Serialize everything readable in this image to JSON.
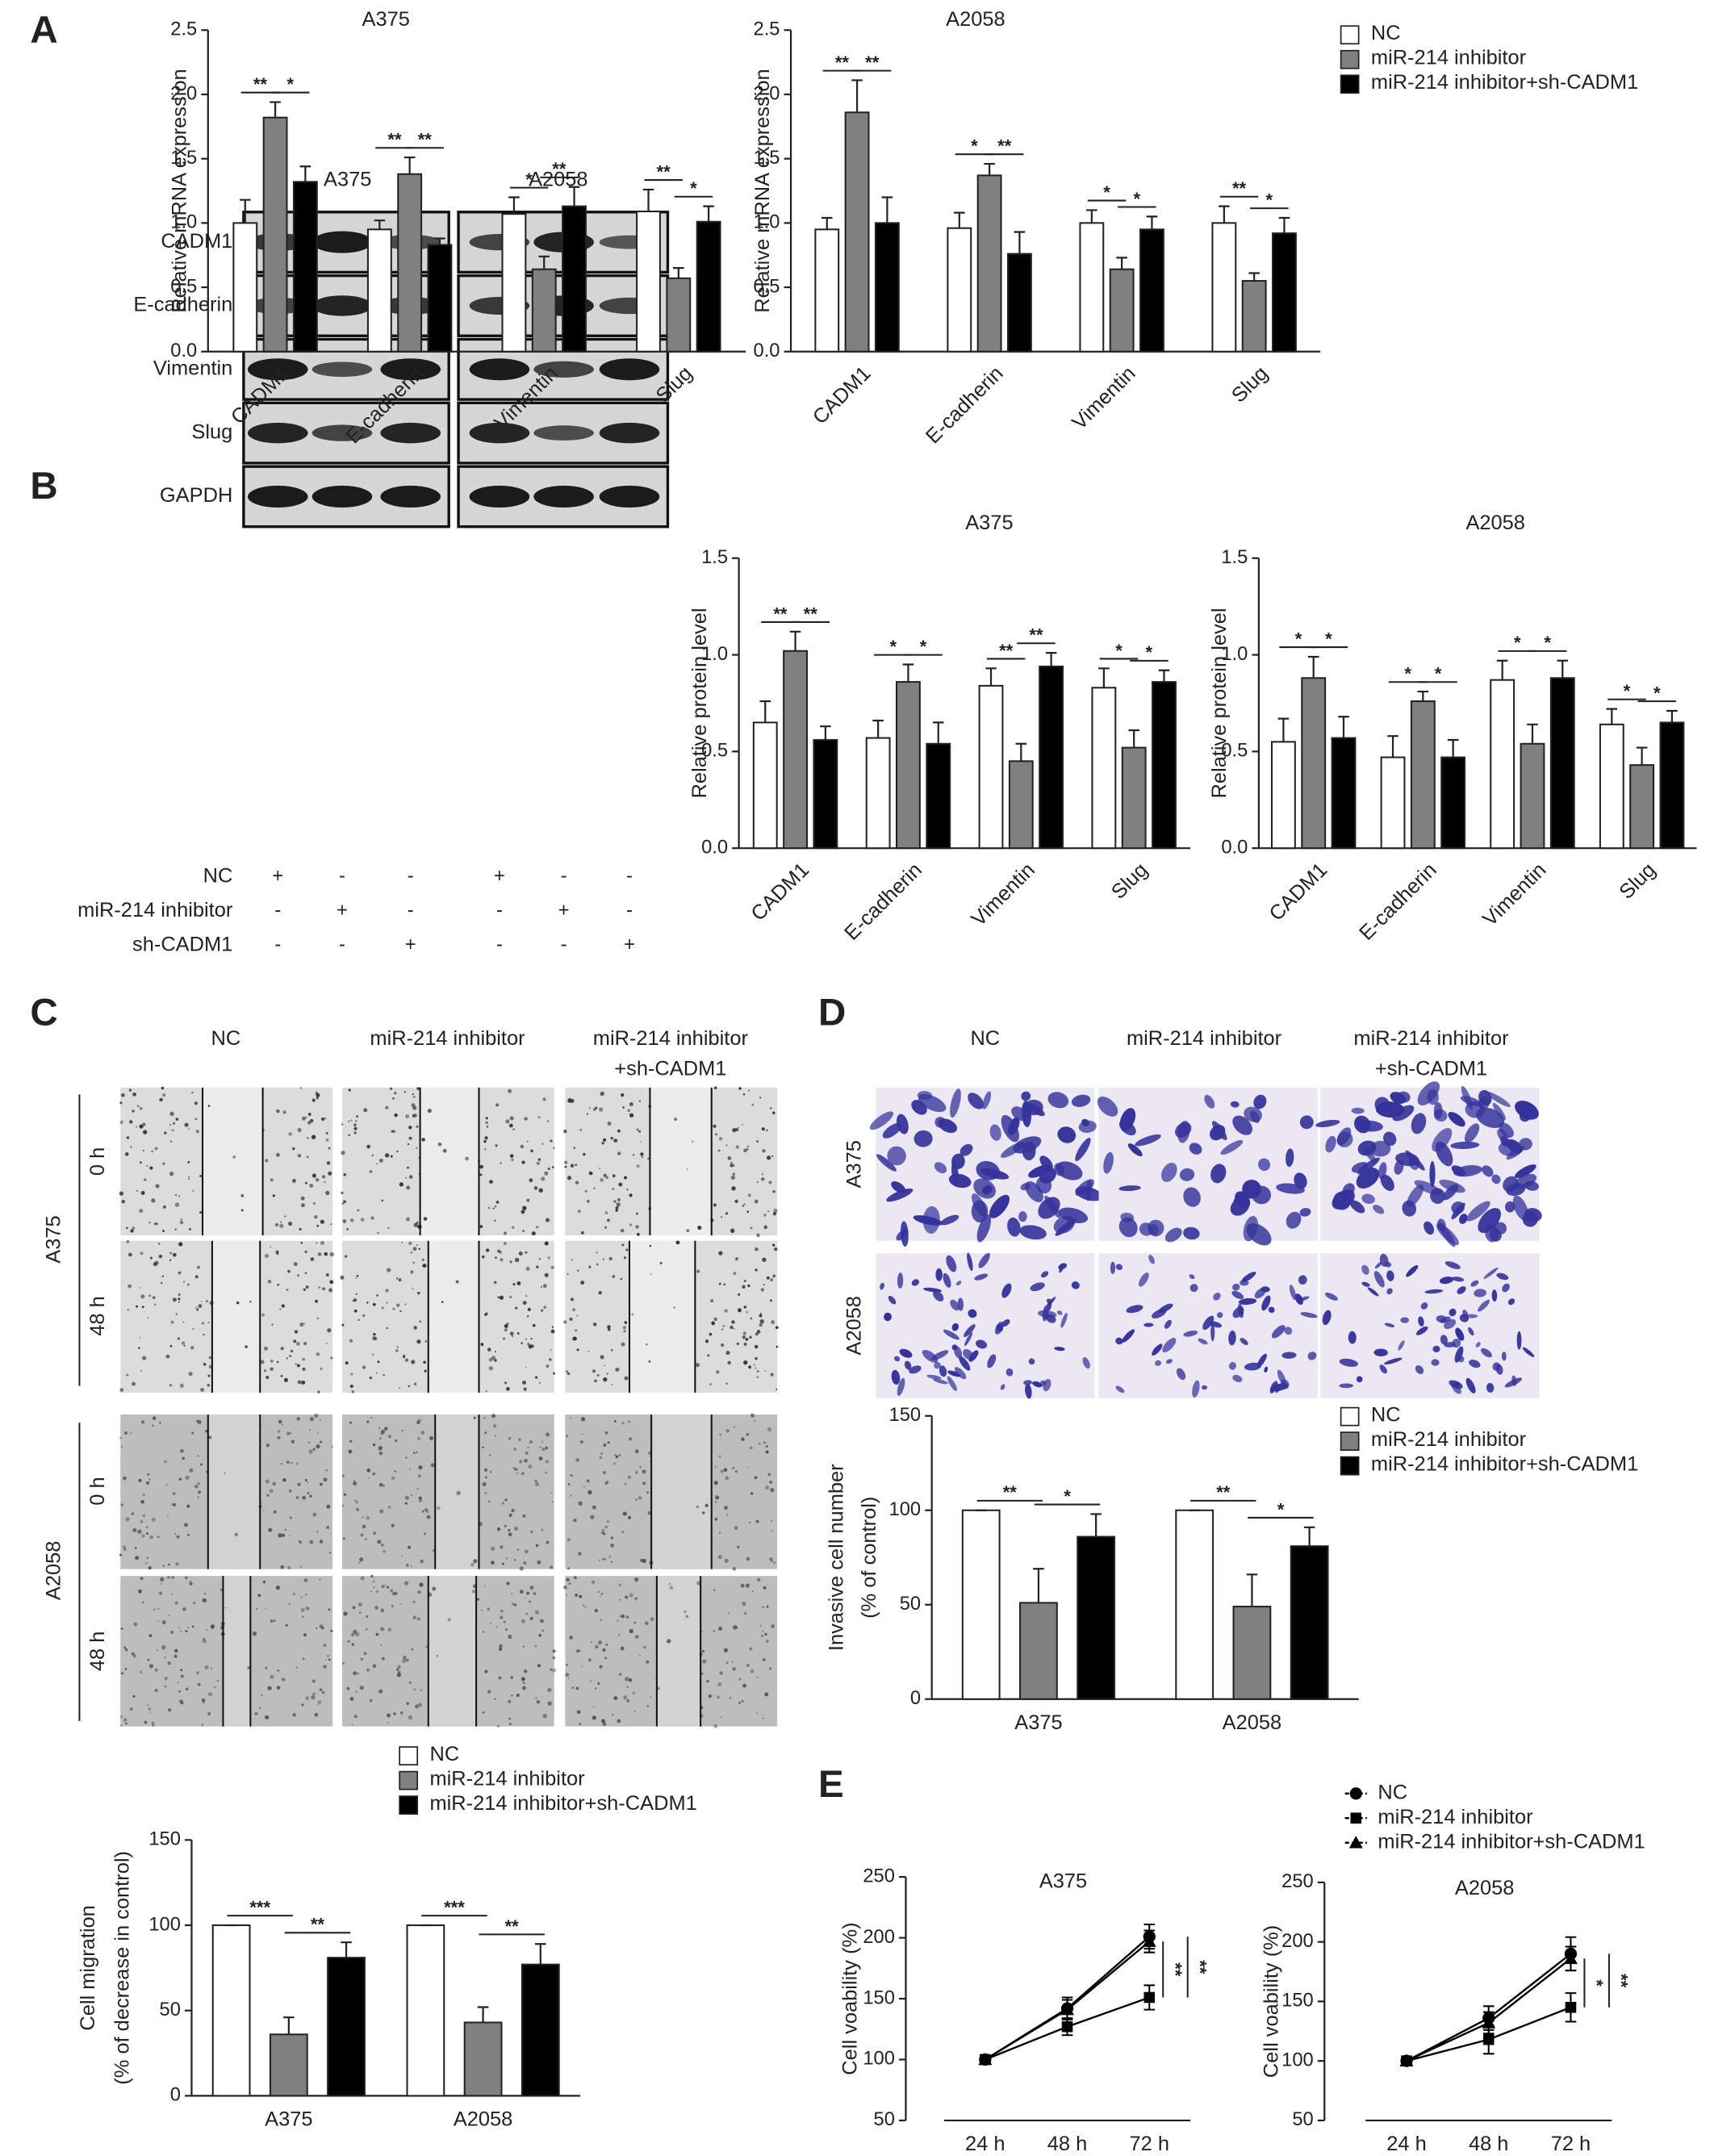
{
  "panel_labels": [
    "A",
    "B",
    "C",
    "D",
    "E"
  ],
  "blot": {
    "cell_lines": [
      "A375",
      "A2058"
    ],
    "proteins": [
      "CADM1",
      "E-cadherin",
      "Vimentin",
      "Slug",
      "GAPDH"
    ],
    "conditions": [
      {
        "name": "NC",
        "signs": [
          "+",
          "-",
          "-",
          "+",
          "-",
          "-"
        ]
      },
      {
        "name": "miR-214 inhibitor",
        "signs": [
          "-",
          "+",
          "-",
          "-",
          "+",
          "-"
        ]
      },
      {
        "name": "sh-CADM1",
        "signs": [
          "-",
          "-",
          "+",
          "-",
          "-",
          "+"
        ]
      }
    ]
  },
  "wound_assay": {
    "groups": [
      [
        "NC"
      ],
      [
        "miR-214 inhibitor"
      ],
      [
        "miR-214 inhibitor",
        "+sh-CADM1"
      ]
    ],
    "cell_lines": [
      "A375",
      "A2058"
    ],
    "times": [
      "0 h",
      "48 h"
    ]
  },
  "invasion_assay": {
    "groups": [
      [
        "NC"
      ],
      [
        "miR-214 inhibitor"
      ],
      [
        "miR-214 inhibitor",
        "+sh-CADM1"
      ]
    ],
    "cell_lines": [
      "A375",
      "A2058"
    ]
  },
  "chart_data": [
    {
      "type": "bar",
      "title": "A375",
      "y_label": "Relative mRNA expression",
      "categories": [
        "CADM1",
        "E-cadherin",
        "Vimentin",
        "Slug"
      ],
      "series": [
        {
          "name": "NC",
          "color": "#ffffff",
          "values": [
            1.0,
            0.95,
            1.07,
            1.09
          ],
          "errors": [
            0.18,
            0.07,
            0.13,
            0.17
          ]
        },
        {
          "name": "miR-214 inhibitor",
          "color": "#808080",
          "values": [
            1.82,
            1.38,
            0.64,
            0.57
          ],
          "errors": [
            0.12,
            0.13,
            0.1,
            0.08
          ]
        },
        {
          "name": "miR-214 inhibitor+sh-CADM1",
          "color": "#000000",
          "values": [
            1.32,
            0.83,
            1.13,
            1.01
          ],
          "errors": [
            0.12,
            0.05,
            0.15,
            0.12
          ]
        }
      ],
      "significance": [
        [
          "**",
          "*"
        ],
        [
          "**",
          "**"
        ],
        [
          "*",
          "**"
        ],
        [
          "**",
          "*"
        ]
      ],
      "ylim": [
        0,
        2.5
      ],
      "yticks": [
        {
          "value": 0,
          "label": "0.0"
        },
        0.5,
        {
          "value": 1,
          "label": "1.0"
        },
        1.5,
        {
          "value": 2,
          "label": "2.0"
        },
        2.5
      ]
    },
    {
      "type": "bar",
      "title": "A2058",
      "y_label": "Relative mRNA expression",
      "categories": [
        "CADM1",
        "E-cadherin",
        "Vimentin",
        "Slug"
      ],
      "series": [
        {
          "name": "NC",
          "color": "#ffffff",
          "values": [
            0.95,
            0.96,
            1.0,
            1.0
          ],
          "errors": [
            0.09,
            0.12,
            0.1,
            0.13
          ]
        },
        {
          "name": "miR-214 inhibitor",
          "color": "#808080",
          "values": [
            1.86,
            1.37,
            0.64,
            0.55
          ],
          "errors": [
            0.25,
            0.09,
            0.09,
            0.06
          ]
        },
        {
          "name": "miR-214 inhibitor+sh-CADM1",
          "color": "#000000",
          "values": [
            1.0,
            0.76,
            0.95,
            0.92
          ],
          "errors": [
            0.2,
            0.17,
            0.1,
            0.12
          ]
        }
      ],
      "significance": [
        [
          "**",
          "**"
        ],
        [
          "*",
          "**"
        ],
        [
          "*",
          "*"
        ],
        [
          "**",
          "*"
        ]
      ],
      "legend": "right",
      "ylim": [
        0,
        2.5
      ],
      "yticks": [
        {
          "value": 0,
          "label": "0.0"
        },
        0.5,
        {
          "value": 1,
          "label": "1.0"
        },
        1.5,
        {
          "value": 2,
          "label": "2.0"
        },
        2.5
      ]
    },
    {
      "type": "bar",
      "title": "A375",
      "y_label": "Relative protein level",
      "categories": [
        "CADM1",
        "E-cadherin",
        "Vimentin",
        "Slug"
      ],
      "series": [
        {
          "name": "NC",
          "color": "#ffffff",
          "values": [
            0.65,
            0.57,
            0.84,
            0.83
          ],
          "errors": [
            0.11,
            0.09,
            0.09,
            0.1
          ]
        },
        {
          "name": "miR-214 inhibitor",
          "color": "#808080",
          "values": [
            1.02,
            0.86,
            0.45,
            0.52
          ],
          "errors": [
            0.1,
            0.09,
            0.09,
            0.09
          ]
        },
        {
          "name": "miR-214 inhibitor+sh-CADM1",
          "color": "#000000",
          "values": [
            0.56,
            0.54,
            0.94,
            0.86
          ],
          "errors": [
            0.07,
            0.11,
            0.07,
            0.06
          ]
        }
      ],
      "significance": [
        [
          "**",
          "**"
        ],
        [
          "*",
          "*"
        ],
        [
          "**",
          "**"
        ],
        [
          "*",
          "*"
        ]
      ],
      "ylim": [
        0,
        1.5
      ],
      "yticks": [
        {
          "value": 0,
          "label": "0.0"
        },
        0.5,
        {
          "value": 1,
          "label": "1.0"
        },
        1.5
      ]
    },
    {
      "type": "bar",
      "title": "A2058",
      "y_label": "Relative protein level",
      "categories": [
        "CADM1",
        "E-cadherin",
        "Vimentin",
        "Slug"
      ],
      "series": [
        {
          "name": "NC",
          "color": "#ffffff",
          "values": [
            0.55,
            0.47,
            0.87,
            0.64
          ],
          "errors": [
            0.12,
            0.11,
            0.1,
            0.08
          ]
        },
        {
          "name": "miR-214 inhibitor",
          "color": "#808080",
          "values": [
            0.88,
            0.76,
            0.54,
            0.43
          ],
          "errors": [
            0.11,
            0.05,
            0.1,
            0.09
          ]
        },
        {
          "name": "miR-214 inhibitor+sh-CADM1",
          "color": "#000000",
          "values": [
            0.57,
            0.47,
            0.88,
            0.65
          ],
          "errors": [
            0.11,
            0.09,
            0.09,
            0.06
          ]
        }
      ],
      "significance": [
        [
          "*",
          "*"
        ],
        [
          "*",
          "*"
        ],
        [
          "*",
          "*"
        ],
        [
          "*",
          "*"
        ]
      ],
      "ylim": [
        0,
        1.5
      ],
      "yticks": [
        {
          "value": 0,
          "label": "0.0"
        },
        0.5,
        {
          "value": 1,
          "label": "1.0"
        },
        1.5
      ]
    },
    {
      "type": "bar",
      "y_label": [
        "Cell migration",
        "(% of decrease in control)"
      ],
      "categories": [
        "A375",
        "A2058"
      ],
      "series": [
        {
          "name": "NC",
          "color": "#ffffff",
          "values": [
            100,
            100
          ],
          "errors": [
            0,
            0
          ]
        },
        {
          "name": "miR-214 inhibitor",
          "color": "#808080",
          "values": [
            36,
            43
          ],
          "errors": [
            10,
            9
          ]
        },
        {
          "name": "miR-214 inhibitor+sh-CADM1",
          "color": "#000000",
          "values": [
            81,
            77
          ],
          "errors": [
            9,
            12
          ]
        }
      ],
      "significance": [
        [
          "***",
          "**"
        ],
        [
          "***",
          "**"
        ]
      ],
      "legend": "top",
      "ylim": [
        0,
        150
      ],
      "yticks": [
        0,
        50,
        100,
        150
      ]
    },
    {
      "type": "bar",
      "y_label": [
        "Invasive cell number",
        "(% of control)"
      ],
      "categories": [
        "A375",
        "A2058"
      ],
      "series": [
        {
          "name": "NC",
          "color": "#ffffff",
          "values": [
            100,
            100
          ],
          "errors": [
            0,
            0
          ]
        },
        {
          "name": "miR-214 inhibitor",
          "color": "#808080",
          "values": [
            51,
            49
          ],
          "errors": [
            18,
            17
          ]
        },
        {
          "name": "miR-214 inhibitor+sh-CADM1",
          "color": "#000000",
          "values": [
            86,
            81
          ],
          "errors": [
            12,
            10
          ]
        }
      ],
      "significance": [
        [
          "**",
          "*"
        ],
        [
          "**",
          "*"
        ]
      ],
      "legend": "top right",
      "ylim": [
        0,
        150
      ],
      "yticks": [
        0,
        50,
        100,
        150
      ]
    },
    {
      "type": "line",
      "title": "A375",
      "y_label": "Cell voability (%)",
      "categories": [
        "24 h",
        "48 h",
        "72 h"
      ],
      "series": [
        {
          "name": "NC",
          "color": "#000000",
          "marker": "circle",
          "values": [
            100,
            142,
            201
          ],
          "errors": [
            2,
            9,
            10
          ]
        },
        {
          "name": "miR-214 inhibitor",
          "color": "#000000",
          "marker": "square",
          "values": [
            100,
            127,
            151
          ],
          "errors": [
            2,
            7,
            10
          ]
        },
        {
          "name": "miR-214 inhibitor+sh-CADM1",
          "color": "#000000",
          "marker": "triangle",
          "values": [
            100,
            141,
            197
          ],
          "errors": [
            2,
            8,
            9
          ]
        }
      ],
      "significance": [
        "**",
        "**"
      ],
      "ylim": [
        50,
        250
      ],
      "yticks": [
        50,
        100,
        150,
        200,
        250
      ]
    },
    {
      "type": "line",
      "title": "A2058",
      "y_label": "Cell voability (%)",
      "categories": [
        "24 h",
        "48 h",
        "72 h"
      ],
      "series": [
        {
          "name": "NC",
          "color": "#000000",
          "marker": "circle",
          "values": [
            100,
            136,
            190
          ],
          "errors": [
            2,
            10,
            14
          ]
        },
        {
          "name": "miR-214 inhibitor",
          "color": "#000000",
          "marker": "square",
          "values": [
            100,
            118,
            145
          ],
          "errors": [
            2,
            12,
            12
          ]
        },
        {
          "name": "miR-214 inhibitor+sh-CADM1",
          "color": "#000000",
          "marker": "triangle",
          "values": [
            100,
            132,
            186
          ],
          "errors": [
            2,
            9,
            10
          ]
        }
      ],
      "significance": [
        "*",
        "**"
      ],
      "legend": "top",
      "ylim": [
        50,
        250
      ],
      "yticks": [
        50,
        100,
        150,
        200,
        250
      ]
    }
  ]
}
